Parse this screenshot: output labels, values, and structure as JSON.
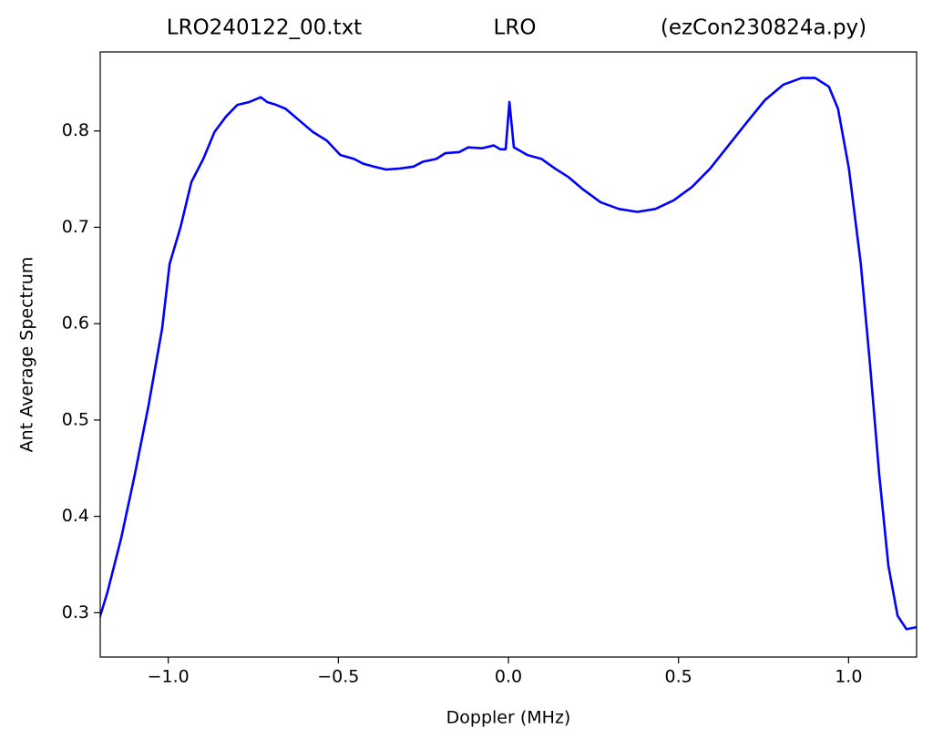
{
  "chart_data": {
    "type": "line",
    "title": [
      "LRO240122_00.txt",
      "LRO",
      "(ezCon230824a.py)"
    ],
    "xlabel": "Doppler (MHz)",
    "ylabel": "Ant Average Spectrum",
    "xlim": [
      -1.2,
      1.2
    ],
    "ylim": [
      0.254,
      0.882
    ],
    "xticks": [
      {
        "value": -1.0,
        "label": "−1.0"
      },
      {
        "value": -0.5,
        "label": "−0.5"
      },
      {
        "value": 0.0,
        "label": "0.0"
      },
      0.5,
      {
        "value": 1.0,
        "label": "1.0"
      }
    ],
    "yticks": [
      0.3,
      0.4,
      0.5,
      0.6,
      0.7,
      0.8
    ],
    "grid": false,
    "series": [
      {
        "color": "#0000ff",
        "x": [
          -1.205,
          -1.179,
          -1.138,
          -1.098,
          -1.058,
          -1.018,
          -0.996,
          -0.964,
          -0.932,
          -0.897,
          -0.864,
          -0.83,
          -0.797,
          -0.762,
          -0.728,
          -0.709,
          -0.682,
          -0.655,
          -0.615,
          -0.575,
          -0.534,
          -0.494,
          -0.454,
          -0.427,
          -0.395,
          -0.36,
          -0.319,
          -0.279,
          -0.252,
          -0.212,
          -0.185,
          -0.145,
          -0.118,
          -0.078,
          -0.043,
          -0.024,
          -0.008,
          0.003,
          0.016,
          0.056,
          0.097,
          0.137,
          0.177,
          0.217,
          0.271,
          0.325,
          0.379,
          0.432,
          0.486,
          0.54,
          0.593,
          0.647,
          0.701,
          0.754,
          0.808,
          0.862,
          0.902,
          0.942,
          0.969,
          1.001,
          1.036,
          1.063,
          1.09,
          1.117,
          1.144,
          1.17,
          1.2
        ],
        "values": [
          0.291,
          0.321,
          0.378,
          0.444,
          0.515,
          0.595,
          0.662,
          0.7,
          0.747,
          0.771,
          0.799,
          0.815,
          0.827,
          0.83,
          0.835,
          0.83,
          0.827,
          0.823,
          0.811,
          0.799,
          0.79,
          0.775,
          0.771,
          0.766,
          0.763,
          0.76,
          0.761,
          0.763,
          0.768,
          0.771,
          0.777,
          0.778,
          0.783,
          0.782,
          0.785,
          0.781,
          0.781,
          0.83,
          0.783,
          0.775,
          0.771,
          0.761,
          0.752,
          0.74,
          0.726,
          0.719,
          0.716,
          0.719,
          0.728,
          0.742,
          0.761,
          0.785,
          0.809,
          0.832,
          0.848,
          0.855,
          0.855,
          0.846,
          0.823,
          0.761,
          0.662,
          0.558,
          0.444,
          0.349,
          0.297,
          0.283,
          0.285
        ]
      }
    ]
  }
}
